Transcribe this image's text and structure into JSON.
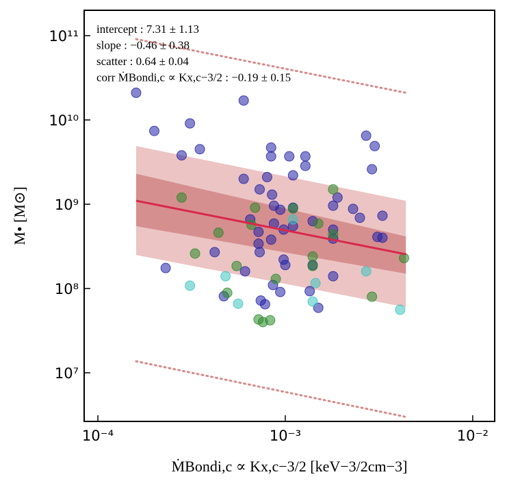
{
  "chart_data": {
    "type": "scatter",
    "xscale": "log",
    "yscale": "log",
    "xlabel": "ṀBondi,c ∝ Kx,c−3/2  [keV−3/2cm−3]",
    "ylabel": "M• [M⊙]",
    "annotations": [
      "intercept :  7.31 ± 1.13",
      "slope :  −0.46 ± 0.38",
      "scatter :  0.64 ± 0.04",
      "corr ṀBondi,c ∝ Kx,c−3/2 :  −0.19 ± 0.15"
    ],
    "xlim": [
      8.45e-05,
      0.0131
    ],
    "ylim": [
      2650000.0,
      200000000000.0
    ],
    "xticks": [
      {
        "value": 0.0001,
        "label": "10⁻⁴"
      },
      {
        "value": 0.001,
        "label": "10⁻³"
      },
      {
        "value": 0.01,
        "label": "10⁻²"
      }
    ],
    "yticks": [
      {
        "value": 10000000.0,
        "label": "10⁷"
      },
      {
        "value": 100000000.0,
        "label": "10⁸"
      },
      {
        "value": 1000000000.0,
        "label": "10⁹"
      },
      {
        "value": 10000000000.0,
        "label": "10¹⁰"
      },
      {
        "value": 100000000000.0,
        "label": "10¹¹"
      }
    ],
    "series": [
      {
        "color": "#2323a8",
        "x": [
          0.00016,
          0.0006,
          0.0002,
          0.00031,
          0.00035,
          0.00028,
          0.00084,
          0.00084,
          0.00105,
          0.00128,
          0.00128,
          0.0011,
          0.0027,
          0.003,
          0.0029,
          0.0006,
          0.0008,
          0.00073,
          0.00085,
          0.00087,
          0.00094,
          0.0011,
          0.0018,
          0.0019,
          0.0023,
          0.0025,
          0.0033,
          0.00087,
          0.0011,
          0.0014,
          0.00072,
          0.00065,
          0.00098,
          0.00084,
          0.00072,
          0.00073,
          0.0018,
          0.0018,
          0.0031,
          0.0033,
          0.00042,
          0.00098,
          0.001,
          0.00061,
          0.0014,
          0.0018,
          0.00023,
          0.00086,
          0.00135,
          0.00094,
          0.00047,
          0.00074,
          0.00078,
          0.0015
        ],
        "values": [
          21000000000.0,
          17000000000.0,
          7400000000.0,
          9100000000.0,
          4500000000.0,
          3800000000.0,
          4700000000.0,
          3700000000.0,
          3700000000.0,
          3700000000.0,
          2850000000.0,
          2200000000.0,
          6500000000.0,
          4900000000.0,
          2600000000.0,
          2000000000.0,
          2100000000.0,
          1500000000.0,
          1300000000.0,
          960000000.0,
          860000000.0,
          910000000.0,
          960000000.0,
          1200000000.0,
          880000000.0,
          690000000.0,
          730000000.0,
          590000000.0,
          550000000.0,
          630000000.0,
          470000000.0,
          660000000.0,
          500000000.0,
          380000000.0,
          340000000.0,
          270000000.0,
          500000000.0,
          390000000.0,
          410000000.0,
          400000000.0,
          270000000.0,
          220000000.0,
          190000000.0,
          160000000.0,
          190000000.0,
          140000000.0,
          175000000.0,
          110000000.0,
          93000000.0,
          91000000.0,
          81000000.0,
          72000000.0,
          65000000.0,
          59000000.0
        ]
      },
      {
        "color": "#2a8a2a",
        "x": [
          0.00028,
          0.00069,
          0.0011,
          0.0018,
          0.00066,
          0.00044,
          0.0015,
          0.0018,
          0.00033,
          0.00055,
          0.0014,
          0.0014,
          0.0043,
          0.00089,
          0.00049,
          0.0029,
          0.00072,
          0.00076,
          0.00083
        ],
        "values": [
          1200000000.0,
          910000000.0,
          890000000.0,
          1500000000.0,
          570000000.0,
          460000000.0,
          590000000.0,
          440000000.0,
          260000000.0,
          185000000.0,
          240000000.0,
          185000000.0,
          230000000.0,
          130000000.0,
          89000000.0,
          80000000.0,
          43000000.0,
          40000000.0,
          42000000.0
        ]
      },
      {
        "color": "#3cc4c0",
        "x": [
          0.0011,
          0.00048,
          0.00031,
          0.00056,
          0.0014,
          0.0027,
          0.0041,
          0.00145
        ],
        "values": [
          660000000.0,
          140000000.0,
          108000000.0,
          66000000.0,
          70000000.0,
          160000000.0,
          56000000.0,
          116000000.0
        ]
      }
    ],
    "bands": [
      {
        "color": "#d98a8a",
        "x": [
          0.00016,
          0.0044
        ],
        "lower": [
          250000000.0,
          60000000.0
        ],
        "upper": [
          4900000000.0,
          1100000000.0
        ]
      },
      {
        "color": "#c05a5a",
        "x": [
          0.00016,
          0.0044
        ],
        "lower": [
          550000000.0,
          150000000.0
        ],
        "upper": [
          2300000000.0,
          415000000.0
        ]
      }
    ],
    "fit": {
      "color": "#d8284c",
      "x": [
        0.00016,
        0.0044
      ],
      "values": [
        1100000000.0,
        255000000.0
      ]
    },
    "scatter_lines": [
      {
        "color": "#d88a8a",
        "x": [
          0.00016,
          0.0044
        ],
        "values": [
          91000000000.0,
          21000000000.0
        ]
      },
      {
        "color": "#d88a8a",
        "x": [
          0.00016,
          0.0044
        ],
        "values": [
          13700000.0,
          3000000.0
        ]
      }
    ]
  }
}
